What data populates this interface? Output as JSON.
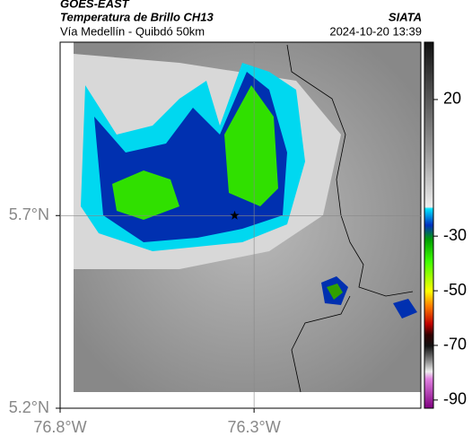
{
  "header": {
    "source": "GOES-EAST",
    "title": "Temperatura de Brillo CH13",
    "route": "Vía Medellín - Quibdó 50km",
    "brand": "SIATA",
    "timestamp": "2024-10-20 13:39"
  },
  "map": {
    "xlim": [
      -76.8,
      -75.87
    ],
    "ylim": [
      5.2,
      6.15
    ],
    "xticks": [
      {
        "value": -76.8,
        "label": "76.8°W"
      },
      {
        "value": -76.3,
        "label": "76.3°W"
      }
    ],
    "yticks": [
      {
        "value": 5.7,
        "label": "5.7°N"
      },
      {
        "value": 5.2,
        "label": "5.2°N"
      }
    ],
    "grid_lines": {
      "x": [
        -76.3
      ],
      "y": [
        5.7
      ]
    },
    "marker": {
      "lon": -76.35,
      "lat": 5.7
    }
  },
  "colorbar": {
    "lim": [
      -93,
      41
    ],
    "ticks": [
      20,
      -30,
      -50,
      -70,
      -90
    ]
  }
}
